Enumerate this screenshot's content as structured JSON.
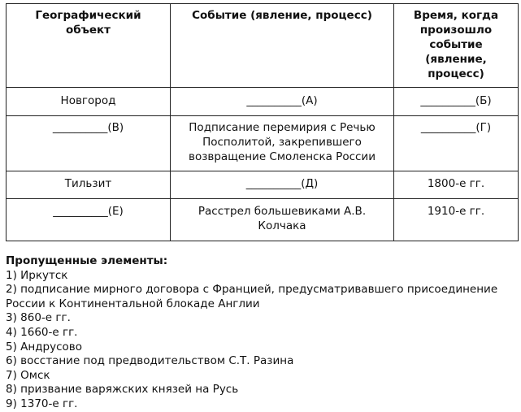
{
  "table": {
    "headers": [
      "Географический объект",
      "Событие (явление, процесс)",
      "Время, когда произошло событие (явление, процесс)"
    ],
    "rows": [
      [
        "Новгород",
        "__________(А)",
        "__________(Б)"
      ],
      [
        "__________(В)",
        "Подписание перемирия с Речью Посполитой, закрепившего возвращение Смоленска России",
        "__________(Г)"
      ],
      [
        "Тильзит",
        "__________(Д)",
        "1800-е гг."
      ],
      [
        "__________(Е)",
        "Расстрел большевиками А.В. Колчака",
        "1910-е гг."
      ]
    ]
  },
  "list": {
    "title": "Пропущенные элементы:",
    "items": [
      "1) Иркутск",
      "2) подписание мирного договора с Францией, предусматривавшего присоединение России к Континентальной блокаде Англии",
      "3) 860-е гг.",
      "4) 1660-е гг.",
      "5) Андрусово",
      "6) восстание под предводительством С.Т. Разина",
      "7) Омск",
      "8) призвание варяжских князей на Русь",
      "9) 1370-е гг."
    ]
  }
}
